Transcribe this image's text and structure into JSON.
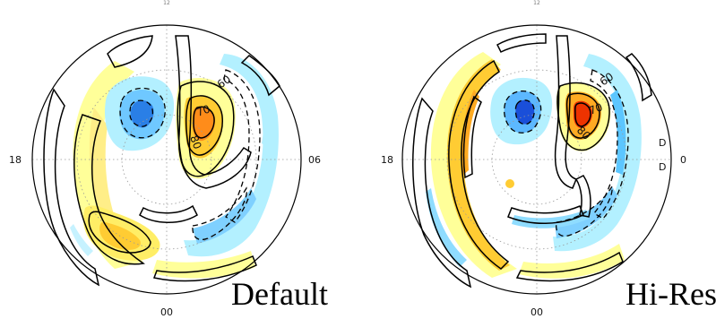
{
  "colors": {
    "positive_light": "#ffff99",
    "positive_mid": "#ffcc33",
    "positive_strong": "#ff7711",
    "positive_core": "#ee2200",
    "negative_light": "#b3f0ff",
    "negative_mid": "#4fb3ff",
    "negative_strong": "#1a5fe6",
    "contour": "#000000",
    "frame": "#000000",
    "grid": "#999999"
  },
  "panels": [
    {
      "caption": "Default",
      "top_label": "12",
      "tick_left": "18",
      "tick_right": "06",
      "tick_bottom": "00",
      "contour_labels": [
        "60",
        "70",
        "80"
      ]
    },
    {
      "caption": "Hi-Res",
      "top_label": "12",
      "tick_left": "18",
      "tick_right": "0",
      "tick_bottom": "00",
      "contour_labels": [
        "60",
        "70",
        "80"
      ],
      "extra_labels": [
        "D",
        "D"
      ]
    }
  ]
}
